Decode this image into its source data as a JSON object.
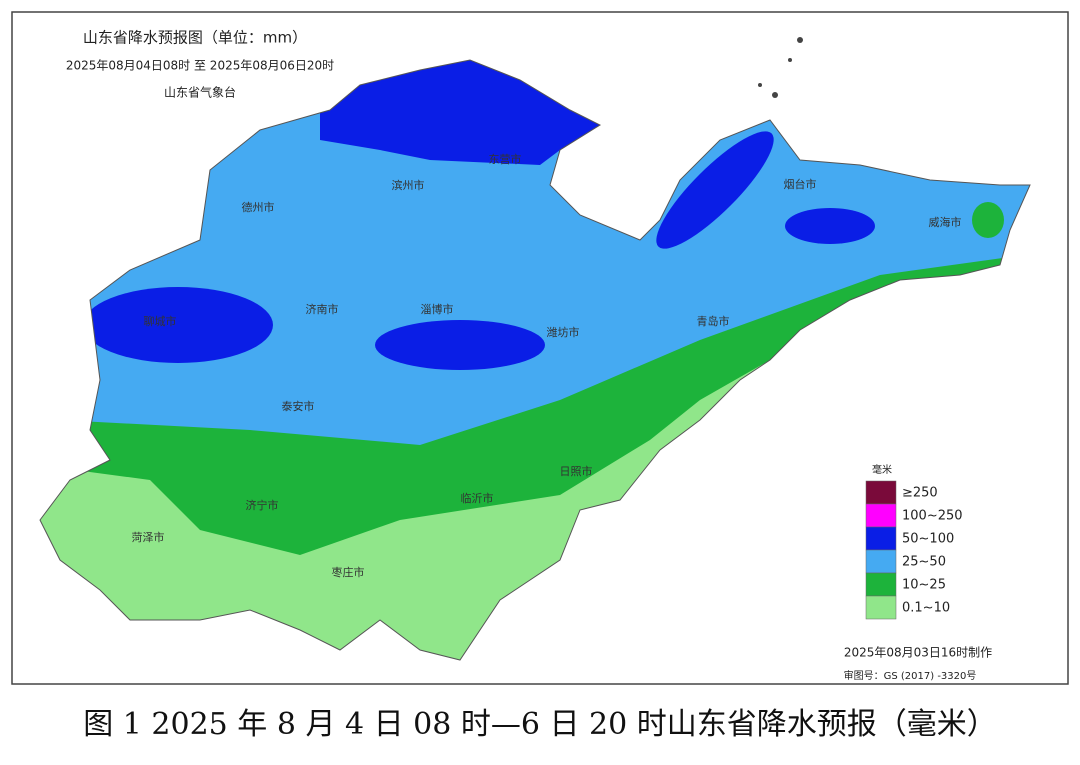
{
  "header": {
    "title": "山东省降水预报图（单位：mm）",
    "period": "2025年08月04日08时  至  2025年08月06日20时",
    "agency": "山东省气象台"
  },
  "cities": [
    "滨州市",
    "东营市",
    "德州市",
    "烟台市",
    "威海市",
    "聊城市",
    "济南市",
    "淄博市",
    "潍坊市",
    "青岛市",
    "泰安市",
    "日照市",
    "临沂市",
    "济宁市",
    "菏泽市",
    "枣庄市"
  ],
  "legend": {
    "title": "毫米",
    "items": [
      {
        "label": "≥250",
        "color": "#7a0a3a"
      },
      {
        "label": "100~250",
        "color": "#ff00ff"
      },
      {
        "label": "50~100",
        "color": "#0a1ee6"
      },
      {
        "label": "25~50",
        "color": "#45aaf2"
      },
      {
        "label": "10~25",
        "color": "#1db33b"
      },
      {
        "label": "0.1~10",
        "color": "#90e68a"
      }
    ]
  },
  "footer": {
    "made": "2025年08月03日16时制作",
    "review": "审图号：GS (2017) -3320号"
  },
  "caption": "图 1 2025 年 8 月 4 日 08 时—6 日 20 时山东省降水预报（毫米）"
}
